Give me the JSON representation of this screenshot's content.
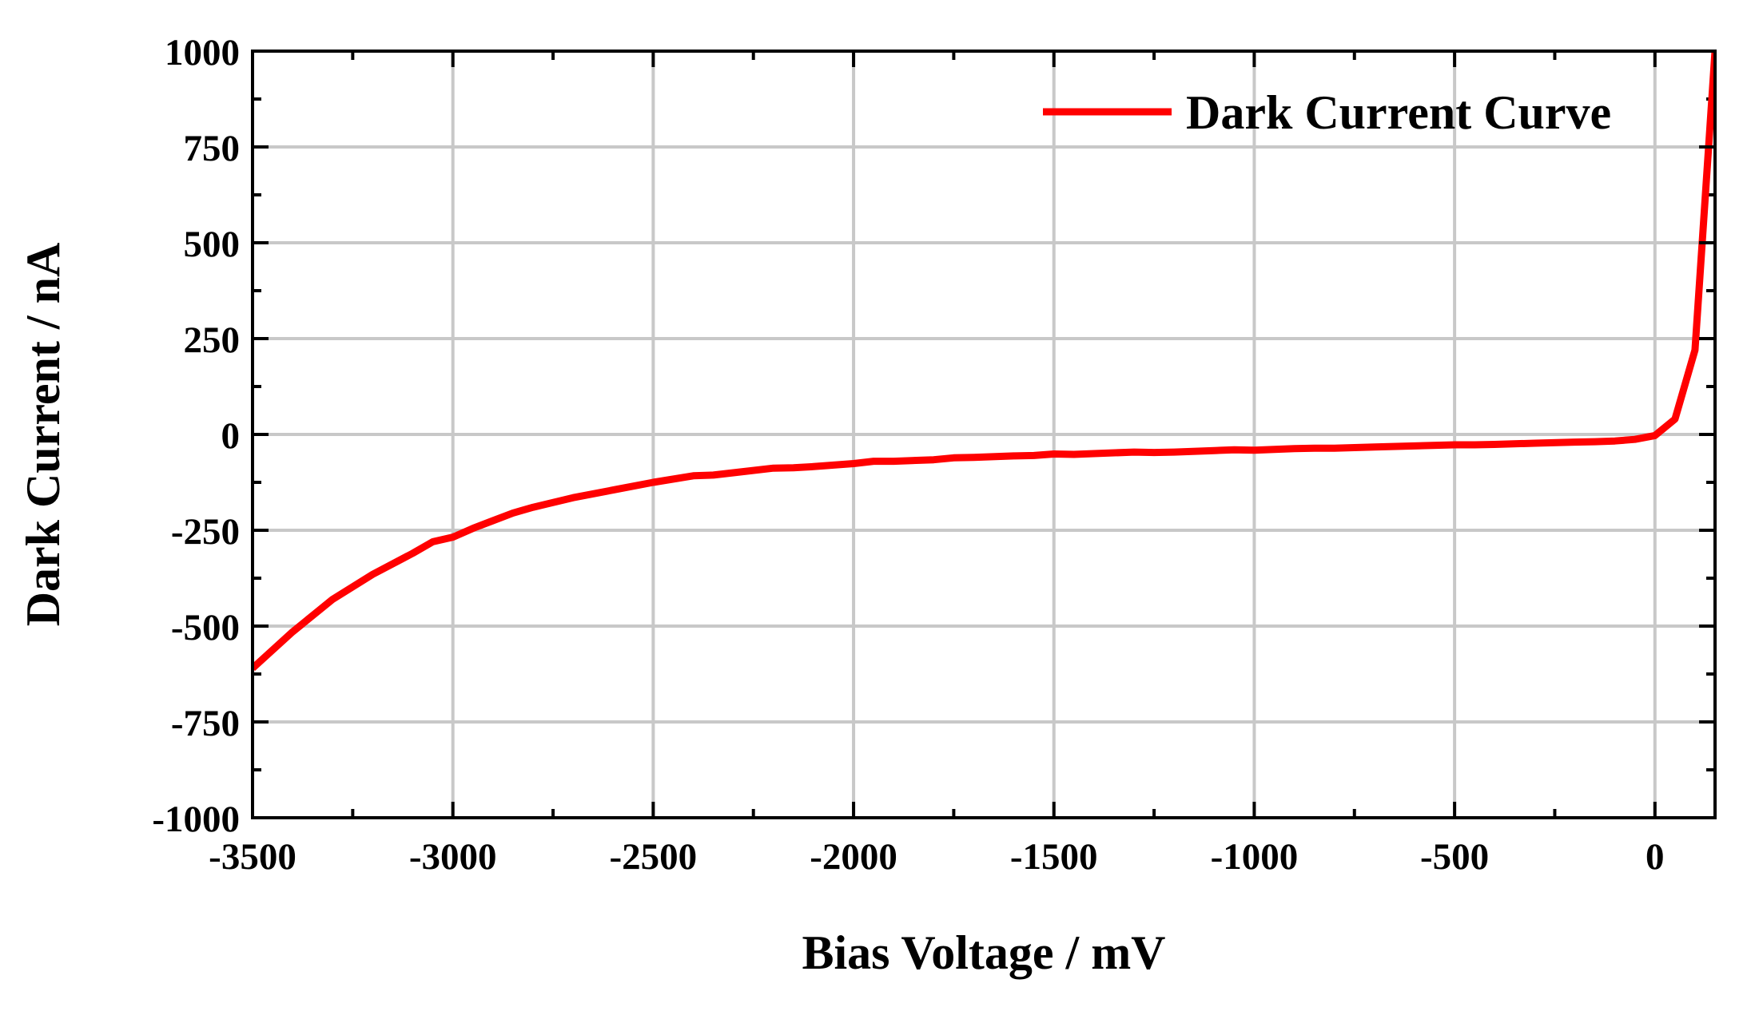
{
  "chart_data": {
    "type": "line",
    "title": "",
    "xlabel": "Bias Voltage / mV",
    "ylabel": "Dark Current / nA",
    "xlim": [
      -3500,
      150
    ],
    "ylim": [
      -1000,
      1000
    ],
    "x_ticks": [
      -3500,
      -3000,
      -2500,
      -2000,
      -1500,
      -1000,
      -500,
      0
    ],
    "x_tick_labels": [
      "-3500",
      "-3000",
      "-2500",
      "-2000",
      "-1500",
      "-1000",
      "-500",
      "0"
    ],
    "y_ticks": [
      1000,
      750,
      500,
      250,
      0,
      -250,
      -500,
      -750,
      -1000
    ],
    "y_tick_labels": [
      "1000",
      "750",
      "500",
      "250",
      "0",
      "-250",
      "-500",
      "-750",
      "-1000"
    ],
    "grid": true,
    "legend_position": "top-right",
    "series": [
      {
        "name": "Dark Current Curve",
        "color": "#ff0000",
        "x": [
          -3500,
          -3400,
          -3300,
          -3200,
          -3100,
          -3050,
          -3000,
          -2950,
          -2900,
          -2850,
          -2800,
          -2700,
          -2600,
          -2500,
          -2400,
          -2350,
          -2300,
          -2200,
          -2150,
          -2100,
          -2000,
          -1950,
          -1900,
          -1800,
          -1750,
          -1700,
          -1600,
          -1550,
          -1500,
          -1450,
          -1400,
          -1300,
          -1250,
          -1200,
          -1100,
          -1050,
          -1000,
          -900,
          -850,
          -800,
          -700,
          -600,
          -500,
          -450,
          -400,
          -300,
          -200,
          -150,
          -100,
          -50,
          0,
          50,
          100,
          150
        ],
        "y": [
          -610,
          -515,
          -430,
          -365,
          -310,
          -280,
          -268,
          -245,
          -225,
          -205,
          -190,
          -165,
          -145,
          -125,
          -108,
          -106,
          -100,
          -88,
          -87,
          -84,
          -76,
          -70,
          -70,
          -66,
          -61,
          -60,
          -56,
          -55,
          -51,
          -52,
          -50,
          -46,
          -47,
          -46,
          -42,
          -40,
          -41,
          -37,
          -36,
          -36,
          -33,
          -30,
          -27,
          -27,
          -26,
          -23,
          -20,
          -19,
          -17,
          -13,
          -3,
          40,
          220,
          1000
        ]
      }
    ]
  }
}
